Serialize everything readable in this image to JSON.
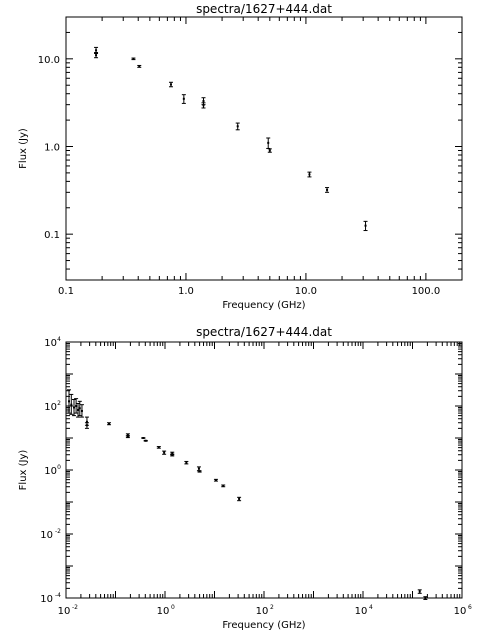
{
  "chart_data": [
    {
      "type": "scatter",
      "title": "spectra/1627+444.dat",
      "xlabel": "Frequency (GHz)",
      "ylabel": "Flux (Jy)",
      "xscale": "log",
      "yscale": "log",
      "xlim": [
        0.1,
        200
      ],
      "ylim": [
        0.03,
        30
      ],
      "xticks": [
        "0.1",
        "1.0",
        "10.0",
        "100.0"
      ],
      "yticks": [
        "0.1",
        "1.0",
        "10.0"
      ],
      "grid": false,
      "points": [
        {
          "x": 0.178,
          "y": 12.5,
          "lo": 11.5,
          "hi": 13.5
        },
        {
          "x": 0.178,
          "y": 11.0,
          "lo": 10.3,
          "hi": 11.8
        },
        {
          "x": 0.365,
          "y": 10.0,
          "lo": 9.8,
          "hi": 10.2
        },
        {
          "x": 0.408,
          "y": 8.2,
          "lo": 8.0,
          "hi": 8.4
        },
        {
          "x": 0.75,
          "y": 5.1,
          "lo": 4.8,
          "hi": 5.4
        },
        {
          "x": 0.96,
          "y": 3.5,
          "lo": 3.1,
          "hi": 3.9
        },
        {
          "x": 1.4,
          "y": 3.3,
          "lo": 3.0,
          "hi": 3.6
        },
        {
          "x": 1.4,
          "y": 2.95,
          "lo": 2.75,
          "hi": 3.15
        },
        {
          "x": 2.7,
          "y": 1.7,
          "lo": 1.55,
          "hi": 1.85
        },
        {
          "x": 4.85,
          "y": 1.1,
          "lo": 0.95,
          "hi": 1.25
        },
        {
          "x": 5.0,
          "y": 0.9,
          "lo": 0.86,
          "hi": 0.94
        },
        {
          "x": 10.7,
          "y": 0.48,
          "lo": 0.45,
          "hi": 0.51
        },
        {
          "x": 15.0,
          "y": 0.32,
          "lo": 0.3,
          "hi": 0.34
        },
        {
          "x": 31.4,
          "y": 0.125,
          "lo": 0.11,
          "hi": 0.14
        }
      ]
    },
    {
      "type": "scatter",
      "title": "spectra/1627+444.dat",
      "xlabel": "Frequency (GHz)",
      "ylabel": "Flux (Jy)",
      "xscale": "log",
      "yscale": "log",
      "xlim": [
        0.01,
        1000000
      ],
      "ylim": [
        0.0001,
        10000
      ],
      "xticks": [
        {
          "base": "10",
          "exp": "-2"
        },
        {
          "base": "10",
          "exp": "0"
        },
        {
          "base": "10",
          "exp": "2"
        },
        {
          "base": "10",
          "exp": "4"
        },
        {
          "base": "10",
          "exp": "6"
        }
      ],
      "yticks": [
        {
          "base": "10",
          "exp": "-4"
        },
        {
          "base": "10",
          "exp": "-2"
        },
        {
          "base": "10",
          "exp": "0"
        },
        {
          "base": "10",
          "exp": "2"
        },
        {
          "base": "10",
          "exp": "4"
        }
      ],
      "grid": false,
      "points": [
        {
          "x": 0.0115,
          "y": 140,
          "lo": 60,
          "hi": 320
        },
        {
          "x": 0.0128,
          "y": 110,
          "lo": 55,
          "hi": 230
        },
        {
          "x": 0.0145,
          "y": 90,
          "lo": 50,
          "hi": 160
        },
        {
          "x": 0.016,
          "y": 100,
          "lo": 60,
          "hi": 170
        },
        {
          "x": 0.0175,
          "y": 75,
          "lo": 45,
          "hi": 120
        },
        {
          "x": 0.019,
          "y": 85,
          "lo": 50,
          "hi": 140
        },
        {
          "x": 0.021,
          "y": 70,
          "lo": 45,
          "hi": 110
        },
        {
          "x": 0.0265,
          "y": 32,
          "lo": 25,
          "hi": 45
        },
        {
          "x": 0.0265,
          "y": 25,
          "lo": 20,
          "hi": 30
        },
        {
          "x": 0.074,
          "y": 28,
          "lo": 26,
          "hi": 30
        },
        {
          "x": 0.178,
          "y": 12.5,
          "lo": 11.5,
          "hi": 13.5
        },
        {
          "x": 0.178,
          "y": 11.0,
          "lo": 10.3,
          "hi": 11.8
        },
        {
          "x": 0.365,
          "y": 10.0,
          "lo": 9.8,
          "hi": 10.2
        },
        {
          "x": 0.408,
          "y": 8.2,
          "lo": 8.0,
          "hi": 8.4
        },
        {
          "x": 0.75,
          "y": 5.1,
          "lo": 4.8,
          "hi": 5.4
        },
        {
          "x": 0.96,
          "y": 3.5,
          "lo": 3.1,
          "hi": 3.9
        },
        {
          "x": 1.4,
          "y": 3.3,
          "lo": 3.0,
          "hi": 3.6
        },
        {
          "x": 1.4,
          "y": 2.95,
          "lo": 2.75,
          "hi": 3.15
        },
        {
          "x": 2.7,
          "y": 1.7,
          "lo": 1.55,
          "hi": 1.85
        },
        {
          "x": 4.85,
          "y": 1.1,
          "lo": 0.95,
          "hi": 1.25
        },
        {
          "x": 5.0,
          "y": 0.9,
          "lo": 0.86,
          "hi": 0.94
        },
        {
          "x": 10.7,
          "y": 0.48,
          "lo": 0.45,
          "hi": 0.51
        },
        {
          "x": 15.0,
          "y": 0.32,
          "lo": 0.3,
          "hi": 0.34
        },
        {
          "x": 31.4,
          "y": 0.125,
          "lo": 0.11,
          "hi": 0.14
        },
        {
          "x": 140000,
          "y": 0.00016,
          "lo": 0.00014,
          "hi": 0.00018
        },
        {
          "x": 182000,
          "y": 0.0001,
          "lo": 9e-05,
          "hi": 0.00011
        }
      ]
    }
  ]
}
